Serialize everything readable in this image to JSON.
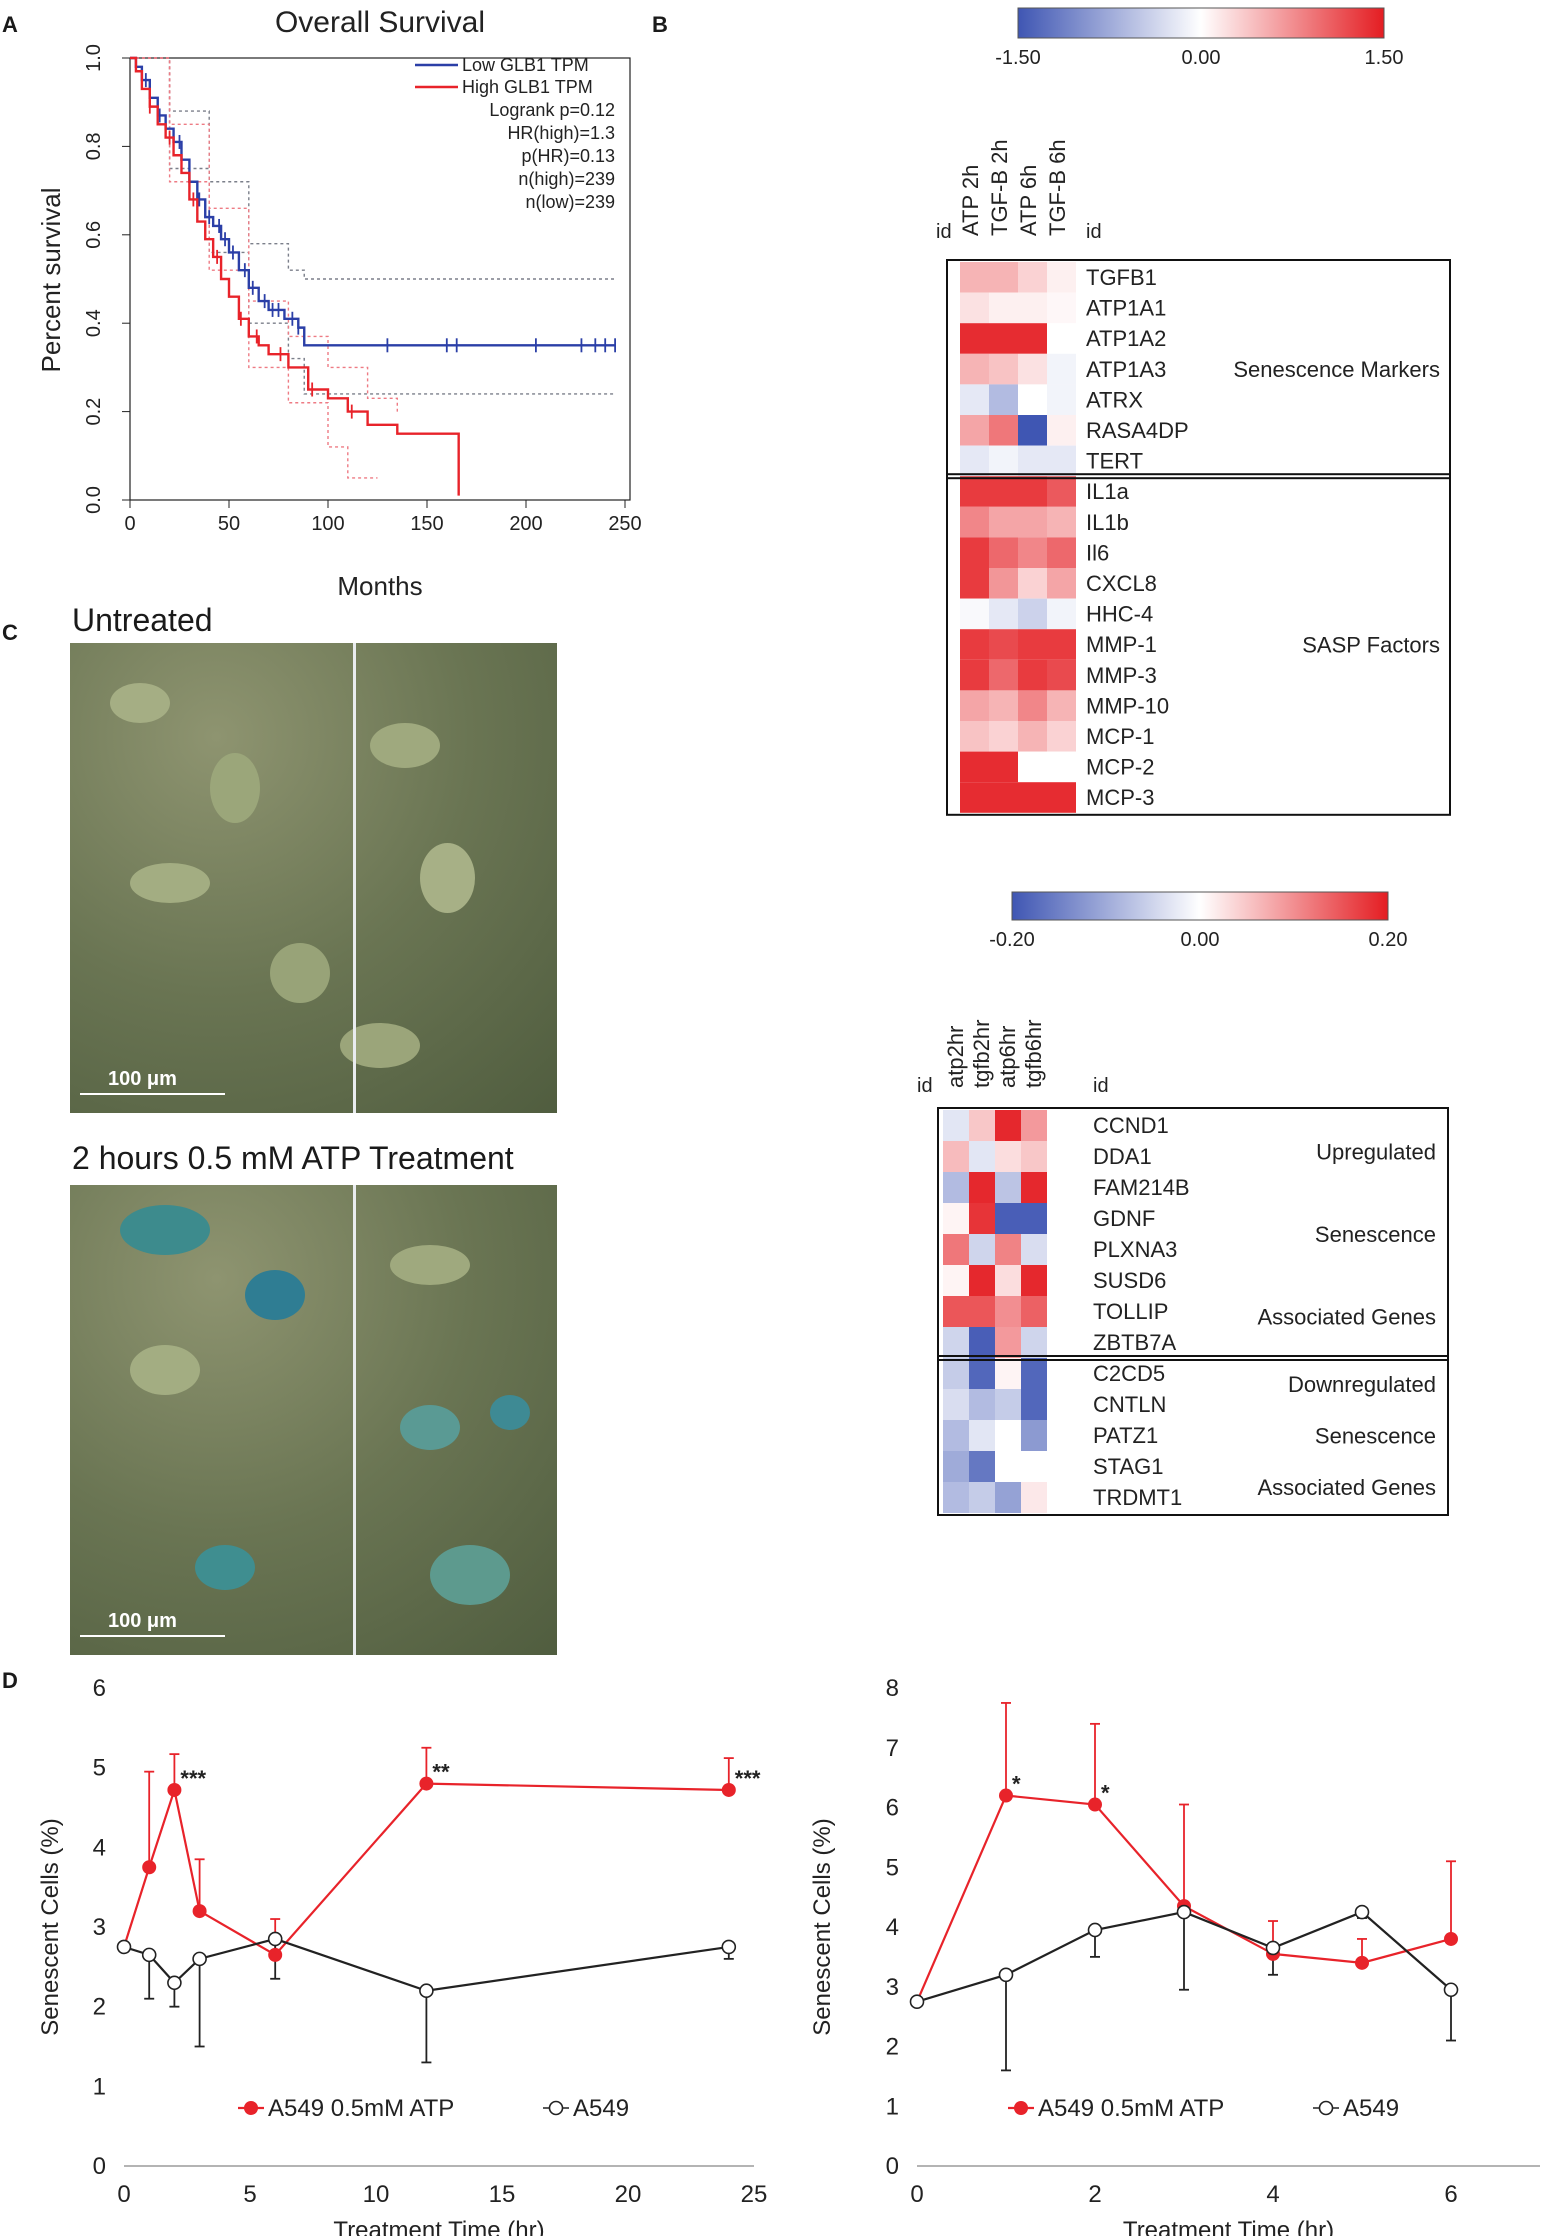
{
  "panel_labels": {
    "a": "A",
    "b": "B",
    "c": "C",
    "d": "D"
  },
  "colors": {
    "low": "#2b3fa7",
    "high": "#e8232a",
    "heat_blue": "#3f56b3",
    "heat_red": "#e41d22",
    "black": "#222222"
  },
  "chart_data": [
    {
      "type": "line",
      "id": "km",
      "title": "Overall Survival",
      "xlabel": "Months",
      "ylabel": "Percent survival",
      "xlim": [
        0,
        250
      ],
      "ylim": [
        0,
        1.0
      ],
      "xticks": [
        "0",
        "50",
        "100",
        "150",
        "200",
        "250"
      ],
      "yticks": [
        "0.0",
        "0.2",
        "0.4",
        "0.6",
        "0.8",
        "1.0"
      ],
      "legend": [
        "Low GLB1 TPM",
        "High GLB1 TPM"
      ],
      "stats": [
        "Logrank p=0.12",
        "HR(high)=1.3",
        "p(HR)=0.13",
        "n(high)=239",
        "n(low)=239"
      ],
      "series": [
        {
          "name": "Low GLB1 TPM",
          "x": [
            0,
            3,
            6,
            10,
            14,
            18,
            22,
            26,
            30,
            34,
            38,
            42,
            46,
            50,
            55,
            60,
            65,
            70,
            78,
            85,
            88,
            95,
            120,
            150,
            200,
            240,
            245
          ],
          "y": [
            1.0,
            0.98,
            0.95,
            0.91,
            0.87,
            0.84,
            0.81,
            0.77,
            0.72,
            0.68,
            0.64,
            0.62,
            0.59,
            0.56,
            0.52,
            0.48,
            0.45,
            0.43,
            0.41,
            0.39,
            0.35,
            0.35,
            0.35,
            0.35,
            0.35,
            0.35,
            0.35
          ]
        },
        {
          "name": "High GLB1 TPM",
          "x": [
            0,
            3,
            6,
            10,
            14,
            18,
            22,
            26,
            30,
            34,
            38,
            42,
            46,
            50,
            55,
            60,
            65,
            70,
            80,
            90,
            100,
            110,
            120,
            135,
            150,
            165,
            166
          ],
          "y": [
            1.0,
            0.97,
            0.93,
            0.89,
            0.85,
            0.82,
            0.78,
            0.74,
            0.68,
            0.63,
            0.59,
            0.55,
            0.5,
            0.46,
            0.41,
            0.37,
            0.35,
            0.33,
            0.3,
            0.25,
            0.23,
            0.2,
            0.17,
            0.15,
            0.15,
            0.15,
            0.01
          ]
        }
      ],
      "ci": [
        {
          "name": "Low GLB1 TPM",
          "upper": [
            [
              0,
              1.0
            ],
            [
              20,
              0.88
            ],
            [
              40,
              0.72
            ],
            [
              60,
              0.58
            ],
            [
              80,
              0.52
            ],
            [
              88,
              0.5
            ],
            [
              245,
              0.5
            ]
          ],
          "lower": [
            [
              0,
              1.0
            ],
            [
              20,
              0.75
            ],
            [
              40,
              0.56
            ],
            [
              60,
              0.4
            ],
            [
              80,
              0.32
            ],
            [
              88,
              0.24
            ],
            [
              245,
              0.24
            ]
          ]
        },
        {
          "name": "High GLB1 TPM",
          "upper": [
            [
              0,
              1.0
            ],
            [
              20,
              0.85
            ],
            [
              40,
              0.66
            ],
            [
              60,
              0.45
            ],
            [
              80,
              0.37
            ],
            [
              100,
              0.3
            ],
            [
              120,
              0.23
            ],
            [
              135,
              0.2
            ]
          ],
          "lower": [
            [
              0,
              1.0
            ],
            [
              20,
              0.72
            ],
            [
              40,
              0.52
            ],
            [
              60,
              0.3
            ],
            [
              80,
              0.22
            ],
            [
              100,
              0.12
            ],
            [
              110,
              0.05
            ],
            [
              125,
              0.05
            ]
          ]
        }
      ],
      "censor_low": [
        8,
        15,
        25,
        35,
        40,
        45,
        48,
        52,
        58,
        62,
        68,
        72,
        75,
        82,
        85,
        130,
        160,
        165,
        205,
        228,
        235,
        240,
        245
      ],
      "censor_high": [
        10,
        20,
        32,
        44,
        56,
        64,
        76,
        92,
        112
      ]
    },
    {
      "type": "heatmap",
      "id": "heat1",
      "scale": [
        "-1.50",
        "0.00",
        "1.50"
      ],
      "vmin": -1.5,
      "vmax": 1.5,
      "id_label": "id",
      "columns": [
        "ATP 2h",
        "TGF-B 2h",
        "ATP 6h",
        "TGF-B 6h"
      ],
      "rows": [
        "TGFB1",
        "ATP1A1",
        "ATP1A2",
        "ATP1A3",
        "ATRX",
        "RASA4DP",
        "TERT",
        "IL1a",
        "IL1b",
        "Il6",
        "CXCL8",
        "HHC-4",
        "MMP-1",
        "MMP-3",
        "MMP-10",
        "MCP-1",
        "MCP-2",
        "MCP-3"
      ],
      "values": [
        [
          0.5,
          0.5,
          0.3,
          0.1
        ],
        [
          0.2,
          0.1,
          0.1,
          0.05
        ],
        [
          1.4,
          1.4,
          1.4,
          0.0
        ],
        [
          0.5,
          0.4,
          0.2,
          -0.1
        ],
        [
          -0.2,
          -0.6,
          0.0,
          -0.1
        ],
        [
          0.6,
          0.9,
          -1.5,
          0.1
        ],
        [
          -0.2,
          -0.1,
          -0.2,
          -0.2
        ],
        [
          1.3,
          1.3,
          1.3,
          1.1
        ],
        [
          0.8,
          0.6,
          0.6,
          0.5
        ],
        [
          1.3,
          1.0,
          0.8,
          1.0
        ],
        [
          1.3,
          0.7,
          0.3,
          0.6
        ],
        [
          -0.05,
          -0.2,
          -0.4,
          -0.1
        ],
        [
          1.3,
          1.2,
          1.3,
          1.3
        ],
        [
          1.3,
          1.0,
          1.3,
          1.2
        ],
        [
          0.6,
          0.5,
          0.8,
          0.5
        ],
        [
          0.4,
          0.3,
          0.5,
          0.3
        ],
        [
          1.4,
          1.4,
          0.0,
          0.0
        ],
        [
          1.4,
          1.4,
          1.4,
          1.4
        ]
      ],
      "groups": [
        {
          "label": "Senescence Markers",
          "from": 0,
          "to": 6
        },
        {
          "label": "SASP Factors",
          "from": 7,
          "to": 17
        }
      ]
    },
    {
      "type": "heatmap",
      "id": "heat2",
      "scale": [
        "-0.20",
        "0.00",
        "0.20"
      ],
      "vmin": -0.2,
      "vmax": 0.2,
      "id_label": "id",
      "columns": [
        "atp2hr",
        "tgfb2hr",
        "atp6hr",
        "tgfb6hr"
      ],
      "rows": [
        "CCND1",
        "DDA1",
        "FAM214B",
        "GDNF",
        "PLXNA3",
        "SUSD6",
        "TOLLIP",
        "ZBTB7A",
        "C2CD5",
        "CNTLN",
        "PATZ1",
        "STAG1",
        "TRDMT1"
      ],
      "values": [
        [
          -0.03,
          0.05,
          0.19,
          0.09
        ],
        [
          0.06,
          -0.03,
          0.03,
          0.05
        ],
        [
          -0.08,
          0.19,
          -0.07,
          0.19
        ],
        [
          0.01,
          0.18,
          -0.19,
          -0.19
        ],
        [
          0.12,
          -0.05,
          0.11,
          -0.04
        ],
        [
          0.01,
          0.19,
          0.03,
          0.19
        ],
        [
          0.15,
          0.15,
          0.1,
          0.14
        ],
        [
          -0.05,
          -0.19,
          0.09,
          -0.05
        ],
        [
          -0.06,
          -0.18,
          0.01,
          -0.18
        ],
        [
          -0.04,
          -0.08,
          -0.06,
          -0.18
        ],
        [
          -0.08,
          -0.03,
          0.0,
          -0.12
        ],
        [
          -0.1,
          -0.16,
          0.0,
          0.0
        ],
        [
          -0.08,
          -0.06,
          -0.11,
          0.02
        ]
      ],
      "groups": [
        {
          "labels": [
            "Upregulated",
            "Senescence",
            "Associated Genes"
          ],
          "from": 0,
          "to": 7
        },
        {
          "labels": [
            "Downregulated",
            "Senescence",
            "Associated Genes"
          ],
          "from": 8,
          "to": 12
        }
      ]
    },
    {
      "type": "line",
      "id": "d1",
      "xlabel": "Treatment Time (hr)",
      "ylabel": "Senescent Cells (%)",
      "xlim": [
        0,
        25
      ],
      "ylim": [
        0,
        6
      ],
      "xticks": [
        "0",
        "5",
        "10",
        "15",
        "20",
        "25"
      ],
      "yticks": [
        "0",
        "1",
        "2",
        "3",
        "4",
        "5",
        "6"
      ],
      "legend": [
        "A549 0.5mM ATP",
        "A549"
      ],
      "series": [
        {
          "name": "A549 0.5mM ATP",
          "x": [
            0,
            1,
            2,
            3,
            6,
            12,
            24
          ],
          "y": [
            2.75,
            3.75,
            4.72,
            3.2,
            2.65,
            4.8,
            4.72
          ],
          "err": [
            0,
            1.2,
            0.45,
            0.65,
            0.45,
            0.45,
            0.4
          ]
        },
        {
          "name": "A549",
          "x": [
            0,
            1,
            2,
            3,
            6,
            12,
            24
          ],
          "y": [
            2.75,
            2.65,
            2.3,
            2.6,
            2.85,
            2.2,
            2.75
          ],
          "err": [
            0,
            0.55,
            0.3,
            1.1,
            0.5,
            0.9,
            0.15
          ]
        }
      ],
      "annotations": [
        {
          "x": 2,
          "y": 4.72,
          "text": "***"
        },
        {
          "x": 12,
          "y": 4.8,
          "text": "**"
        },
        {
          "x": 24,
          "y": 4.72,
          "text": "***"
        }
      ]
    },
    {
      "type": "line",
      "id": "d2",
      "xlabel": "Treatment Time (hr)",
      "ylabel": "Senescent Cells (%)",
      "xlim": [
        0,
        7
      ],
      "ylim": [
        0,
        8
      ],
      "xticks": [
        "0",
        "2",
        "4",
        "6"
      ],
      "yticks": [
        "0",
        "1",
        "2",
        "3",
        "4",
        "5",
        "6",
        "7",
        "8"
      ],
      "legend": [
        "A549 0.5mM ATP",
        "A549"
      ],
      "series": [
        {
          "name": "A549 0.5mM ATP",
          "x": [
            0,
            1,
            2,
            3,
            4,
            5,
            6
          ],
          "y": [
            2.75,
            6.2,
            6.05,
            4.35,
            3.55,
            3.4,
            3.8
          ],
          "err": [
            0,
            1.55,
            1.35,
            1.7,
            0.55,
            0.4,
            1.3
          ]
        },
        {
          "name": "A549",
          "x": [
            0,
            1,
            2,
            3,
            4,
            5,
            6
          ],
          "y": [
            2.75,
            3.2,
            3.95,
            4.25,
            3.65,
            4.25,
            2.95
          ],
          "err": [
            0,
            1.6,
            0.45,
            1.3,
            0.45,
            0.1,
            0.85
          ]
        }
      ],
      "annotations": [
        {
          "x": 1,
          "y": 6.2,
          "text": "*"
        },
        {
          "x": 2,
          "y": 6.05,
          "text": "*"
        }
      ]
    }
  ],
  "panel_c": {
    "title_top": "Untreated",
    "title_bottom": "2 hours 0.5 mM ATP Treatment",
    "scalebar": "100 μm"
  }
}
